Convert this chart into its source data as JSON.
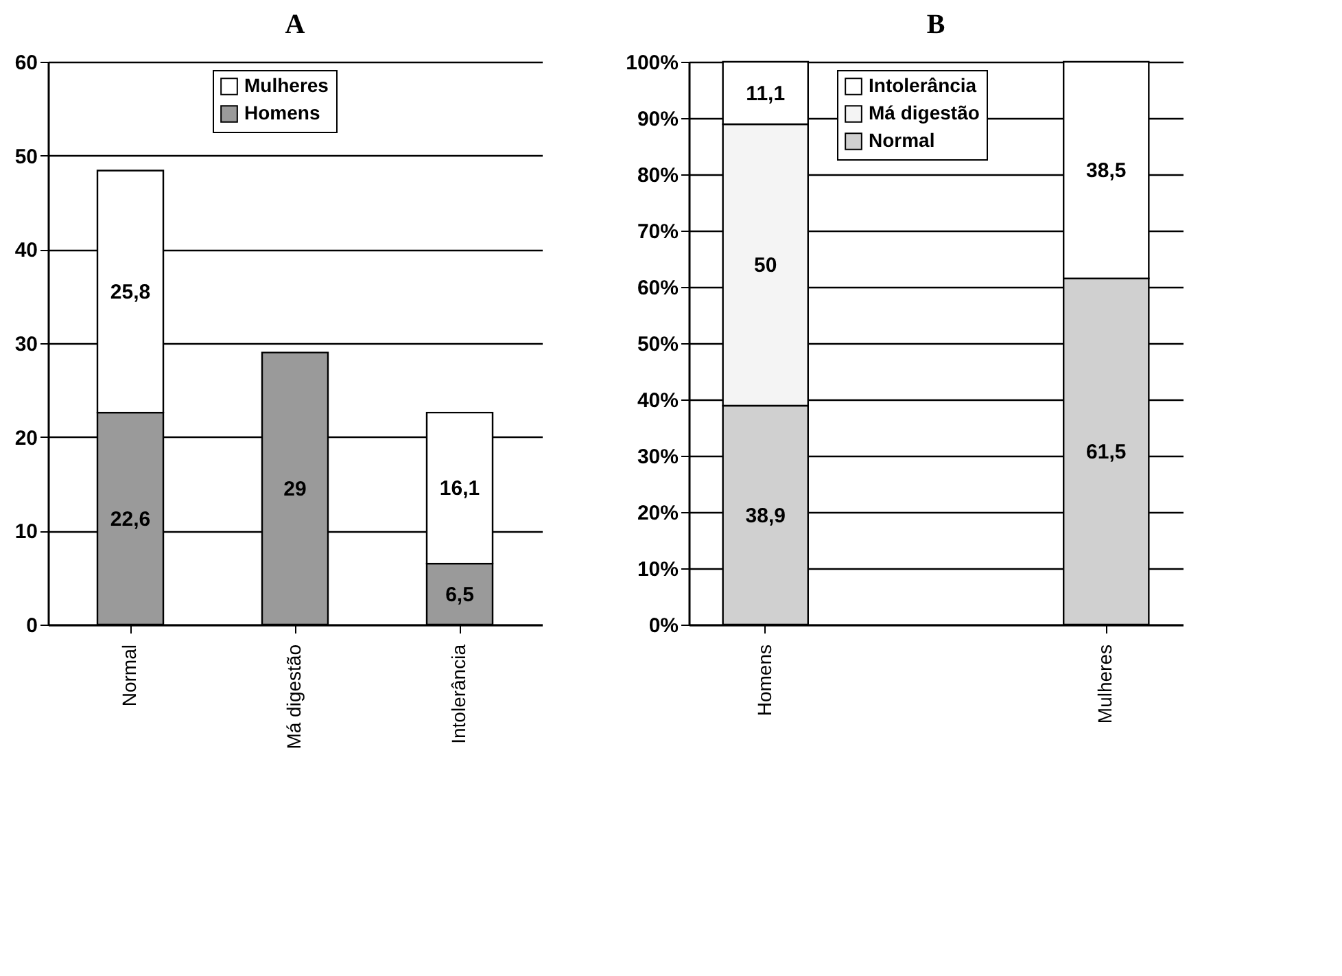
{
  "chart_data": [
    {
      "type": "bar",
      "title": "A",
      "categories": [
        "Normal",
        "Má digestão",
        "Intolerância"
      ],
      "stacked": true,
      "series": [
        {
          "name": "Homens",
          "color": "#9a9a9a",
          "values": [
            22.6,
            29,
            6.5
          ],
          "value_labels": [
            "22,6",
            "29",
            "6,5"
          ]
        },
        {
          "name": "Mulheres",
          "color": "#ffffff",
          "values": [
            25.8,
            null,
            16.1
          ],
          "value_labels": [
            "25,8",
            null,
            "16,1"
          ]
        }
      ],
      "ylim": [
        0,
        60
      ],
      "yticks": [
        0,
        10,
        20,
        30,
        40,
        50,
        60
      ],
      "grid": "y",
      "legend": "top"
    },
    {
      "type": "bar",
      "title": "B",
      "categories": [
        "Homens",
        "Mulheres"
      ],
      "stacked": true,
      "series": [
        {
          "name": "Normal",
          "color": "#d0d0d0",
          "values": [
            38.9,
            61.5
          ],
          "value_labels": [
            "38,9",
            "61,5"
          ]
        },
        {
          "name": "Má digestão",
          "color": "#f4f4f4",
          "values": [
            50,
            null
          ],
          "value_labels": [
            "50",
            null
          ]
        },
        {
          "name": "Intolerância",
          "color": "#ffffff",
          "values": [
            11.1,
            38.5
          ],
          "value_labels": [
            "11,1",
            "38,5"
          ]
        }
      ],
      "ylim": [
        0,
        100
      ],
      "yticks": [
        {
          "value": 0,
          "label": "0%"
        },
        {
          "value": 10,
          "label": "10%"
        },
        {
          "value": 20,
          "label": "20%"
        },
        {
          "value": 30,
          "label": "30%"
        },
        {
          "value": 40,
          "label": "40%"
        },
        {
          "value": 50,
          "label": "50%"
        },
        {
          "value": 60,
          "label": "60%"
        },
        {
          "value": 70,
          "label": "70%"
        },
        {
          "value": 80,
          "label": "80%"
        },
        {
          "value": 90,
          "label": "90%"
        },
        {
          "value": 100,
          "label": "100%"
        }
      ],
      "grid": "y",
      "legend": "top left"
    }
  ]
}
